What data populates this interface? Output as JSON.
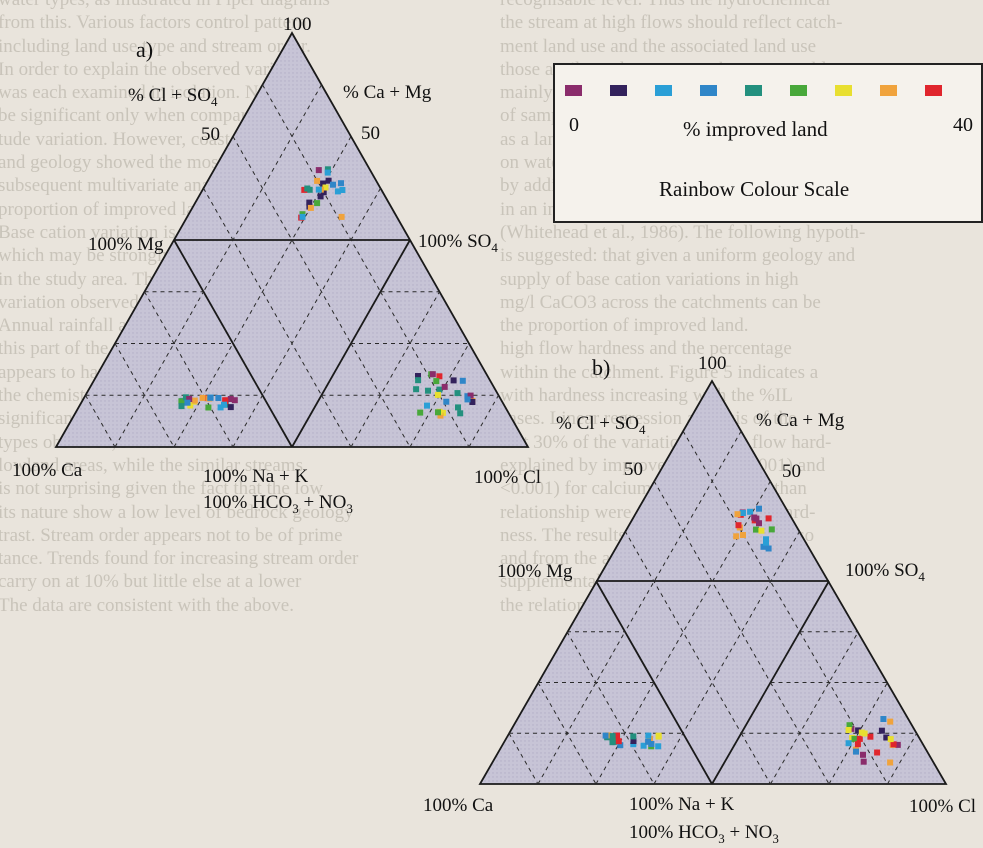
{
  "background_text": {
    "left": [
      "water types, as illustrated in Piper diagrams",
      "from this. Various factors control pattern",
      "including land use type and stream order.",
      "In order to explain the observed variation",
      "was each examined in isolation. Nine",
      "be significant only when comparing the",
      "tude variation. However, coastal proximity",
      "and geology showed the most influence",
      "subsequent multivariate analysis revealed that",
      "proportion of improved land can account for",
      "Base cation variation is also important",
      "which may be strongly influenced by the",
      "in the study area. The continuous distribution",
      "variation observed in figure 4. Soil",
      "Annual rainfall and altitude are also related",
      "this part of the data. Of other factors, soil",
      "appears to have only secondary influence on",
      "the chemistry. Catchment geology, the most",
      "significant control, grouped catchments into",
      "types observed, related to catchment size",
      "lowland areas, while the similar streams",
      "is not surprising given the fact that the low",
      "its nature show a low level of bedrock geology",
      "trast. Stream order appears not to be of prime",
      "tance. Trends found for increasing stream order",
      "carry on at 10% but little else at a lower",
      "The data are consistent with the above."
    ],
    "right": [
      "recognisable level. Thus the hydrochemical",
      "the stream at high flows should reflect catch-",
      "ment land use and the associated land use",
      "those attributes between catchments would",
      "mainly in high flow stream chemistry, across",
      "of sampled catchments. This hypothesis",
      "as a land use known to have a significant",
      "on water chemistry, namely agricultural",
      "by addition of lime (Edmunds et al., 1990)",
      "in an increase in soil water Ca and Mg con-",
      "(Whitehead et al., 1986). The following hypoth-",
      "is suggested: that given a uniform geology and",
      "supply of base cation variations in high",
      "mg/l CaCO3 across the catchments can be",
      "the proportion of improved land.",
      "high flow hardness and the percentage",
      "within the catchment. Figure 5 indicates a",
      "with hardness increasing with the %IL",
      "cases. Linear regression analysis of the",
      "that 30% of the variation in high flow hard-",
      "explained by improved land (p<0.001) and",
      "<0.001) for calcium. This is greater than",
      "relationship were found for Mg and hard-",
      "ness. The results of improved land is also",
      "and from the analysis in high (p<0.001)",
      "supplemental to the above relationship",
      "the relationship is"
    ]
  },
  "legend": {
    "colors": [
      "#8a2c6b",
      "#33225c",
      "#2a9fd6",
      "#2f86c8",
      "#23907e",
      "#48a83a",
      "#e8df30",
      "#f0a33c",
      "#e0262d"
    ],
    "min_label": "0",
    "max_label": "40",
    "axis_label": "% improved land",
    "title": "Rainbow Colour Scale"
  },
  "panels": [
    {
      "id": "a",
      "label": "a)",
      "diamond_top": "100",
      "left_upper": "% Cl + SO",
      "left_upper_sub": "4",
      "right_upper": "% Ca + Mg",
      "left_fifty": "50",
      "right_fifty": "50",
      "left_corner": "100% Mg",
      "right_corner": "100% SO",
      "right_corner_sub": "4",
      "bottom_left": "100% Ca",
      "bottom_center_1": "100% Na + K",
      "bottom_center_2": "100% HCO",
      "bottom_center_2_sub": "3",
      "bottom_center_2_tail": " + NO",
      "bottom_center_2_sub2": "3",
      "bottom_right": "100% Cl"
    },
    {
      "id": "b",
      "label": "b)",
      "diamond_top": "100",
      "left_upper": "% Cl + SO",
      "left_upper_sub": "4",
      "right_upper": "% Ca + Mg",
      "left_fifty": "50",
      "right_fifty": "50",
      "left_corner": "100% Mg",
      "right_corner": "100% SO",
      "right_corner_sub": "4",
      "bottom_left": "100% Ca",
      "bottom_center_1": "100% Na + K",
      "bottom_center_2": "100% HCO",
      "bottom_center_2_sub": "3",
      "bottom_center_2_tail": " + NO",
      "bottom_center_2_sub2": "3",
      "bottom_right": "100% Cl"
    }
  ]
}
